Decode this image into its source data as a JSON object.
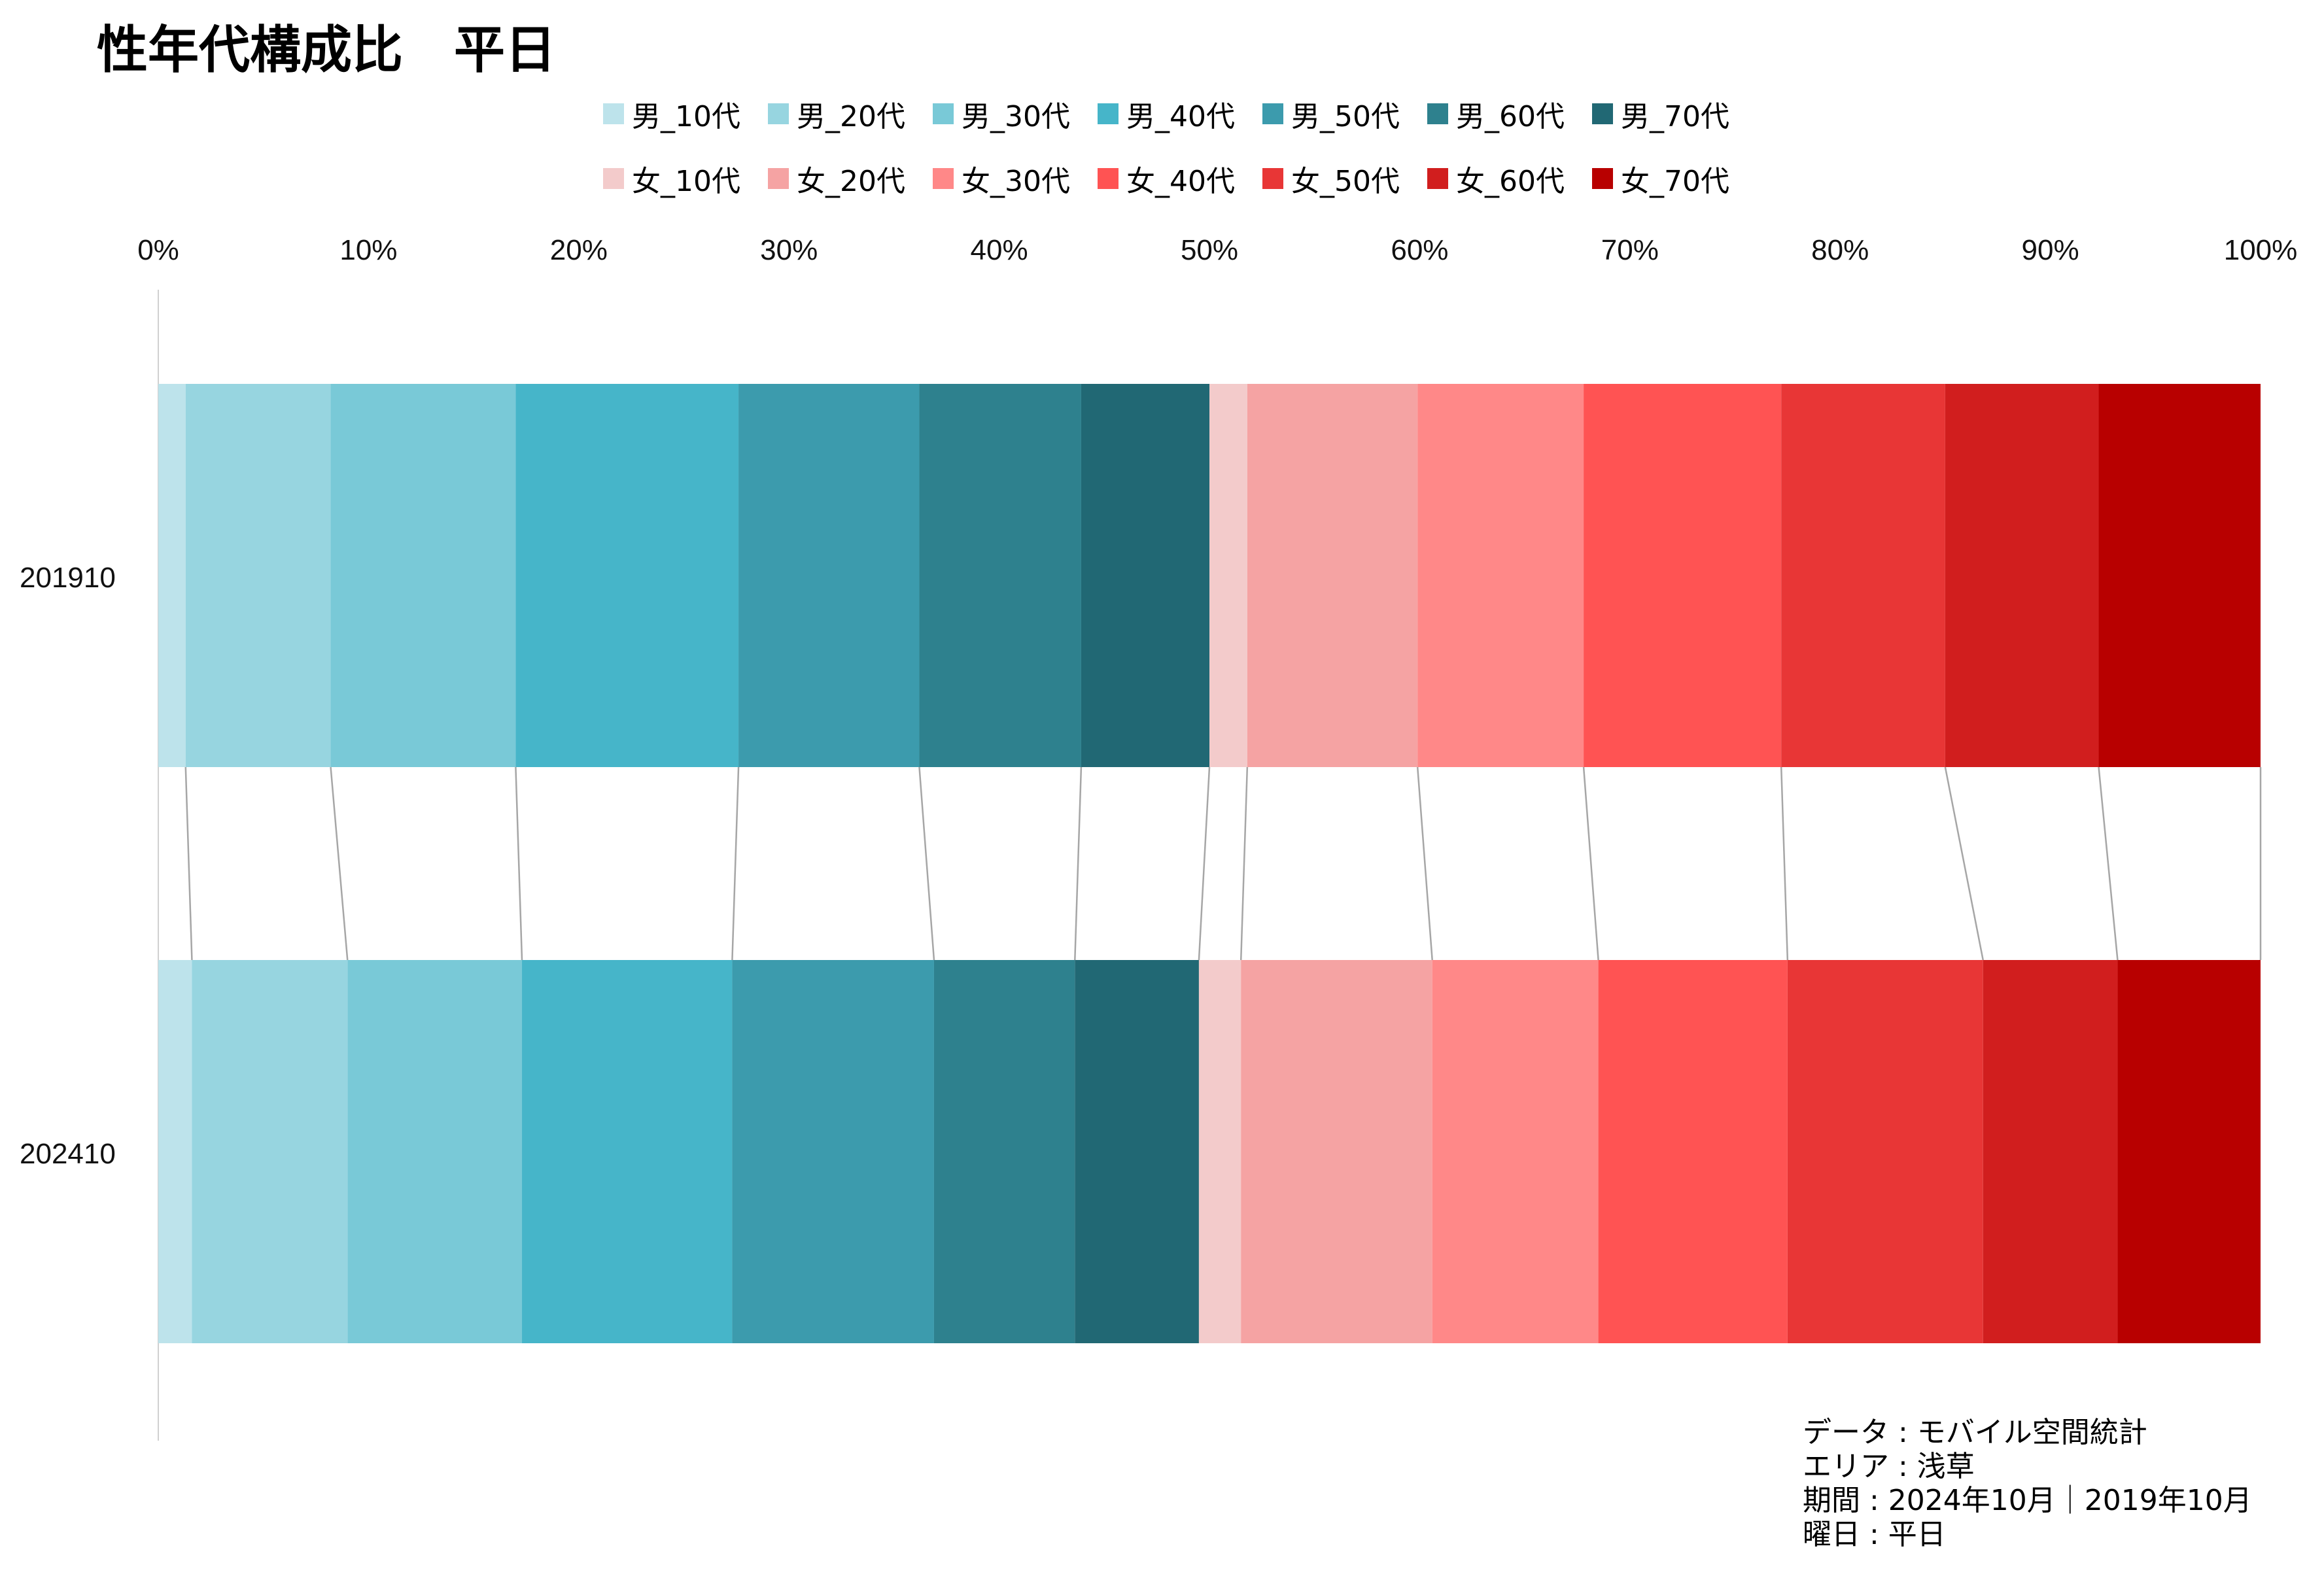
{
  "title": "性年代構成比　平日",
  "legend": {
    "male": [
      {
        "label": "男_10代",
        "color": "#bde3eb"
      },
      {
        "label": "男_20代",
        "color": "#97d5e0"
      },
      {
        "label": "男_30代",
        "color": "#79c9d7"
      },
      {
        "label": "男_40代",
        "color": "#46b5c9"
      },
      {
        "label": "男_50代",
        "color": "#3c9bad"
      },
      {
        "label": "男_60代",
        "color": "#2e818e"
      },
      {
        "label": "男_70代",
        "color": "#216874"
      }
    ],
    "female": [
      {
        "label": "女_10代",
        "color": "#f3cbcb"
      },
      {
        "label": "女_20代",
        "color": "#f5a3a3"
      },
      {
        "label": "女_30代",
        "color": "#ff8888"
      },
      {
        "label": "女_40代",
        "color": "#ff5353"
      },
      {
        "label": "女_50代",
        "color": "#e83636"
      },
      {
        "label": "女_60代",
        "color": "#d11e1e"
      },
      {
        "label": "女_70代",
        "color": "#b80000"
      }
    ]
  },
  "source": {
    "data": "データ : モバイル空間統計",
    "area": "エリア : 浅草",
    "period": "期間 : 2024年10月｜2019年10月",
    "day": "曜日 : 平日"
  },
  "chart_data": {
    "type": "bar",
    "orientation": "horizontal",
    "stacked": "percent",
    "categories": [
      "201910",
      "202410"
    ],
    "xlim": [
      0,
      100
    ],
    "x_ticks": [
      "0%",
      "10%",
      "20%",
      "30%",
      "40%",
      "50%",
      "60%",
      "70%",
      "80%",
      "90%",
      "100%"
    ],
    "grid": false,
    "legend_position": "top",
    "connector_lines": true,
    "series": [
      {
        "name": "男_10代",
        "color": "#bde3eb",
        "values": [
          1.3,
          1.6
        ]
      },
      {
        "name": "男_20代",
        "color": "#97d5e0",
        "values": [
          6.9,
          7.4
        ]
      },
      {
        "name": "男_30代",
        "color": "#79c9d7",
        "values": [
          8.8,
          8.3
        ]
      },
      {
        "name": "男_40代",
        "color": "#46b5c9",
        "values": [
          10.6,
          10.0
        ]
      },
      {
        "name": "男_50代",
        "color": "#3c9bad",
        "values": [
          8.6,
          9.6
        ]
      },
      {
        "name": "男_60代",
        "color": "#2e818e",
        "values": [
          7.7,
          6.7
        ]
      },
      {
        "name": "男_70代",
        "color": "#216874",
        "values": [
          6.1,
          5.9
        ]
      },
      {
        "name": "女_10代",
        "color": "#f3cbcb",
        "values": [
          1.8,
          2.0
        ]
      },
      {
        "name": "女_20代",
        "color": "#f5a3a3",
        "values": [
          8.1,
          9.1
        ]
      },
      {
        "name": "女_30代",
        "color": "#ff8888",
        "values": [
          7.9,
          7.9
        ]
      },
      {
        "name": "女_40代",
        "color": "#ff5353",
        "values": [
          9.4,
          9.0
        ]
      },
      {
        "name": "女_50代",
        "color": "#e83636",
        "values": [
          7.8,
          9.3
        ]
      },
      {
        "name": "女_60代",
        "color": "#d11e1e",
        "values": [
          7.3,
          6.4
        ]
      },
      {
        "name": "女_70代",
        "color": "#b80000",
        "values": [
          7.7,
          6.8
        ]
      }
    ]
  }
}
